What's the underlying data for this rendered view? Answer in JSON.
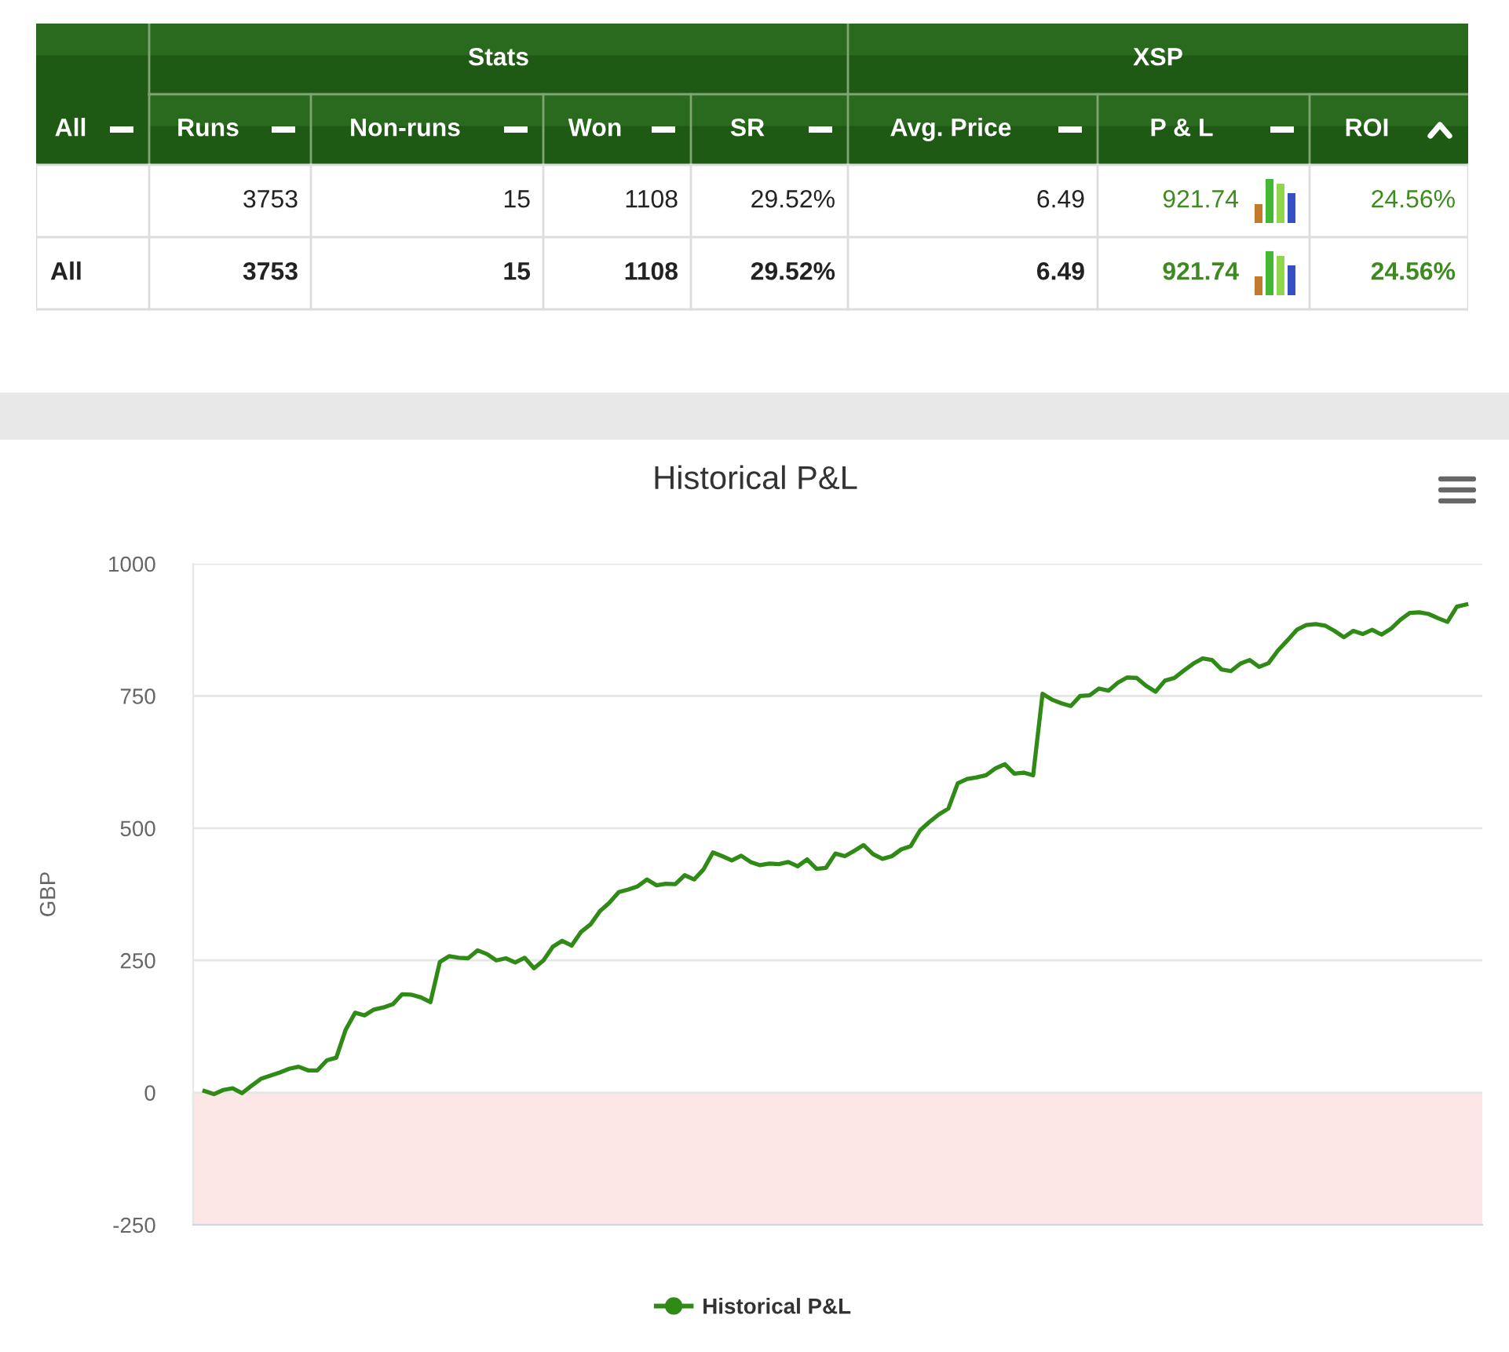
{
  "chart_data": [
    {
      "type": "other",
      "categories": [
        "All",
        "Runs",
        "Non-runs",
        "Won",
        "SR",
        "Avg. Price",
        "P & L",
        "ROI"
      ],
      "annotations": [
        "Stats",
        "XSP"
      ],
      "y_categories": [
        null,
        "All"
      ],
      "cell_labels": [
        [
          "3753",
          "15",
          "1108",
          "29.52%",
          "6.49",
          "921.74",
          "24.56%"
        ],
        [
          "3753",
          "15",
          "1108",
          "29.52%",
          "6.49",
          "921.74",
          "24.56%"
        ]
      ]
    },
    {
      "type": "line",
      "title": "Historical P&L",
      "ylabel": "GBP",
      "categories": [
        null,
        null,
        null,
        null,
        null,
        null,
        null,
        null,
        null,
        null,
        null,
        null,
        null,
        null,
        null,
        null,
        null,
        null,
        null,
        null,
        null,
        null,
        null,
        null,
        null,
        null,
        null,
        null,
        null,
        null,
        null,
        null,
        null,
        null,
        null,
        null,
        null,
        null,
        null,
        null,
        null,
        null,
        null,
        null,
        null,
        null,
        null,
        null,
        null,
        null,
        null,
        null,
        null,
        null,
        null,
        null,
        null,
        null,
        null,
        null,
        null,
        null,
        null,
        null,
        null,
        null,
        null,
        null,
        null,
        null,
        null,
        null,
        null,
        null,
        null,
        null,
        null,
        null,
        null,
        null,
        null,
        null,
        null,
        null,
        null,
        null,
        null,
        null,
        null,
        null,
        null,
        null,
        null,
        null,
        null,
        null,
        null,
        null,
        null,
        null,
        null,
        null,
        null,
        null,
        null,
        null,
        null,
        null,
        null,
        null,
        null,
        null,
        null,
        null,
        null,
        null,
        null,
        null,
        null,
        null,
        null,
        null,
        null,
        null,
        null,
        null,
        null,
        null,
        null,
        null,
        null,
        null,
        null,
        null,
        null
      ],
      "series": [
        {
          "name": "Historical P&L",
          "color": "#2f8a16",
          "values": [
            3,
            -3,
            5,
            8,
            -1,
            13,
            26,
            32,
            38,
            45,
            49,
            42,
            42,
            61,
            66,
            119,
            151,
            146,
            157,
            161,
            167,
            186,
            185,
            180,
            171,
            247,
            258,
            255,
            254,
            269,
            262,
            250,
            254,
            246,
            255,
            235,
            250,
            276,
            287,
            278,
            304,
            318,
            343,
            359,
            379,
            384,
            390,
            403,
            392,
            395,
            394,
            411,
            403,
            422,
            454,
            447,
            439,
            448,
            436,
            430,
            433,
            432,
            436,
            428,
            441,
            423,
            425,
            452,
            447,
            457,
            468,
            451,
            442,
            447,
            460,
            466,
            496,
            512,
            526,
            537,
            585,
            593,
            596,
            600,
            613,
            621,
            603,
            605,
            600,
            754,
            743,
            736,
            731,
            750,
            751,
            764,
            760,
            775,
            785,
            784,
            769,
            758,
            779,
            784,
            798,
            811,
            821,
            818,
            800,
            797,
            811,
            818,
            805,
            812,
            836,
            855,
            875,
            884,
            886,
            883,
            873,
            861,
            873,
            867,
            875,
            866,
            877,
            894,
            907,
            908,
            905,
            897,
            890,
            919,
            923
          ]
        }
      ],
      "ylim": [
        -250,
        1000
      ],
      "yticks": [
        -250,
        0,
        250,
        500,
        750,
        1000
      ],
      "grid": "y",
      "legend": "bottom",
      "bands": [
        {
          "axis": "y",
          "from": -250,
          "to": 0,
          "color": "#fde6e6"
        }
      ]
    }
  ]
}
